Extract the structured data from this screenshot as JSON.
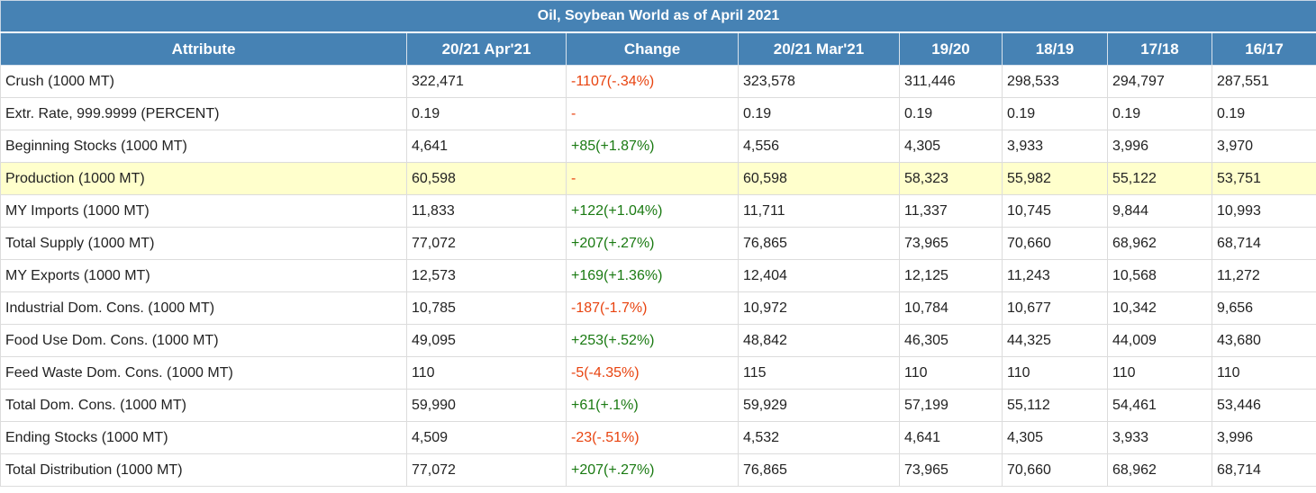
{
  "title": "Oil, Soybean World as of April 2021",
  "columns": [
    "Attribute",
    "20/21 Apr'21",
    "Change",
    "20/21 Mar'21",
    "19/20",
    "18/19",
    "17/18",
    "16/17"
  ],
  "rows": [
    {
      "attr": "Crush (1000 MT)",
      "apr": "322,471",
      "change": "-1107(-.34%)",
      "dir": "neg",
      "mar": "323,578",
      "y1920": "311,446",
      "y1819": "298,533",
      "y1718": "294,797",
      "y1617": "287,551"
    },
    {
      "attr": "Extr. Rate, 999.9999 (PERCENT)",
      "apr": "0.19",
      "change": "-",
      "dir": "neu",
      "mar": "0.19",
      "y1920": "0.19",
      "y1819": "0.19",
      "y1718": "0.19",
      "y1617": "0.19"
    },
    {
      "attr": "Beginning Stocks (1000 MT)",
      "apr": "4,641",
      "change": "+85(+1.87%)",
      "dir": "pos",
      "mar": "4,556",
      "y1920": "4,305",
      "y1819": "3,933",
      "y1718": "3,996",
      "y1617": "3,970"
    },
    {
      "attr": "Production (1000 MT)",
      "apr": "60,598",
      "change": "-",
      "dir": "neu",
      "mar": "60,598",
      "y1920": "58,323",
      "y1819": "55,982",
      "y1718": "55,122",
      "y1617": "53,751",
      "highlight": true
    },
    {
      "attr": "MY Imports (1000 MT)",
      "apr": "11,833",
      "change": "+122(+1.04%)",
      "dir": "pos",
      "mar": "11,711",
      "y1920": "11,337",
      "y1819": "10,745",
      "y1718": "9,844",
      "y1617": "10,993"
    },
    {
      "attr": "Total Supply (1000 MT)",
      "apr": "77,072",
      "change": "+207(+.27%)",
      "dir": "pos",
      "mar": "76,865",
      "y1920": "73,965",
      "y1819": "70,660",
      "y1718": "68,962",
      "y1617": "68,714"
    },
    {
      "attr": "MY Exports (1000 MT)",
      "apr": "12,573",
      "change": "+169(+1.36%)",
      "dir": "pos",
      "mar": "12,404",
      "y1920": "12,125",
      "y1819": "11,243",
      "y1718": "10,568",
      "y1617": "11,272"
    },
    {
      "attr": "Industrial Dom. Cons. (1000 MT)",
      "apr": "10,785",
      "change": "-187(-1.7%)",
      "dir": "neg",
      "mar": "10,972",
      "y1920": "10,784",
      "y1819": "10,677",
      "y1718": "10,342",
      "y1617": "9,656"
    },
    {
      "attr": "Food Use Dom. Cons. (1000 MT)",
      "apr": "49,095",
      "change": "+253(+.52%)",
      "dir": "pos",
      "mar": "48,842",
      "y1920": "46,305",
      "y1819": "44,325",
      "y1718": "44,009",
      "y1617": "43,680"
    },
    {
      "attr": "Feed Waste Dom. Cons. (1000 MT)",
      "apr": "110",
      "change": "-5(-4.35%)",
      "dir": "neg",
      "mar": "115",
      "y1920": "110",
      "y1819": "110",
      "y1718": "110",
      "y1617": "110"
    },
    {
      "attr": "Total Dom. Cons. (1000 MT)",
      "apr": "59,990",
      "change": "+61(+.1%)",
      "dir": "pos",
      "mar": "59,929",
      "y1920": "57,199",
      "y1819": "55,112",
      "y1718": "54,461",
      "y1617": "53,446"
    },
    {
      "attr": "Ending Stocks (1000 MT)",
      "apr": "4,509",
      "change": "-23(-.51%)",
      "dir": "neg",
      "mar": "4,532",
      "y1920": "4,641",
      "y1819": "4,305",
      "y1718": "3,933",
      "y1617": "3,996"
    },
    {
      "attr": "Total Distribution (1000 MT)",
      "apr": "77,072",
      "change": "+207(+.27%)",
      "dir": "pos",
      "mar": "76,865",
      "y1920": "73,965",
      "y1819": "70,660",
      "y1718": "68,962",
      "y1617": "68,714"
    }
  ],
  "colors": {
    "header_bg": "#4682b4",
    "highlight_row": "#ffffcc",
    "positive": "#1a7a12",
    "negative": "#e8430f"
  }
}
